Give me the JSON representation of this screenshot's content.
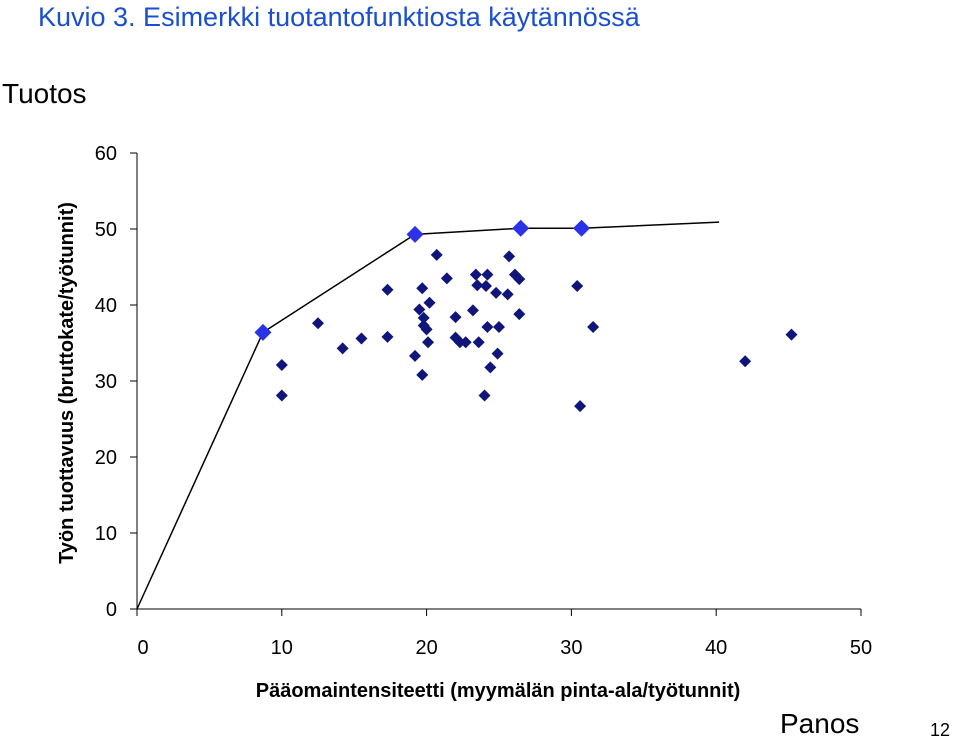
{
  "slide": {
    "title": "Kuvio 3. Esimerkki tuotantofunktiosta käytännössä",
    "output_label": "Tuotos",
    "input_label": "Panos",
    "page_number": "12"
  },
  "chart_data": {
    "type": "scatter",
    "title": "",
    "xlabel": "Pääomaintensiteetti (myymälän pinta-ala/työtunnit)",
    "ylabel": "Työn tuottavuus (bruttokate/työtunnit)",
    "xlim": [
      0,
      50
    ],
    "ylim": [
      0,
      60
    ],
    "x_ticks": [
      0,
      10,
      20,
      30,
      40,
      50
    ],
    "y_ticks": [
      0,
      10,
      20,
      30,
      40,
      50,
      60
    ],
    "grid": false,
    "legend": "none",
    "colors": {
      "points": "#0f157a",
      "frontier_points": "#2b32e8",
      "frontier_line": "#000000",
      "title": "#1a4fd0"
    },
    "frontier_line": {
      "x": [
        0,
        8.7,
        19.2,
        26.5,
        30.7,
        40.2
      ],
      "y": [
        0,
        36.4,
        49.3,
        50.1,
        50.1,
        50.9
      ]
    },
    "frontier_points": {
      "x": [
        8.7,
        19.2,
        26.5,
        30.7
      ],
      "y": [
        36.4,
        49.3,
        50.1,
        50.1
      ]
    },
    "points": {
      "x": [
        10,
        10,
        12.5,
        14.2,
        15.5,
        17.3,
        17.3,
        19.2,
        19.5,
        19.7,
        19.7,
        19.8,
        19.8,
        20,
        20.1,
        20.2,
        20.7,
        21.4,
        22,
        22,
        22.3,
        22.7,
        23.2,
        23.4,
        23.5,
        23.6,
        24,
        24.1,
        24.2,
        24.2,
        24.4,
        24.8,
        24.9,
        25,
        25.6,
        25.7,
        26.1,
        26.4,
        26.4,
        30.4,
        30.6,
        31.5,
        42,
        45.2
      ],
      "y": [
        28.1,
        32.1,
        37.6,
        34.3,
        35.6,
        35.8,
        42,
        33.3,
        39.4,
        42.2,
        30.8,
        38.3,
        37.3,
        36.8,
        35.1,
        40.3,
        46.6,
        43.5,
        38.4,
        35.7,
        35.1,
        35.1,
        39.3,
        44,
        42.6,
        35.1,
        28.1,
        42.5,
        44,
        37.1,
        31.8,
        41.6,
        33.6,
        37.1,
        41.4,
        46.4,
        44,
        43.4,
        38.8,
        42.5,
        26.7,
        37.1,
        32.6,
        36.1
      ]
    }
  }
}
